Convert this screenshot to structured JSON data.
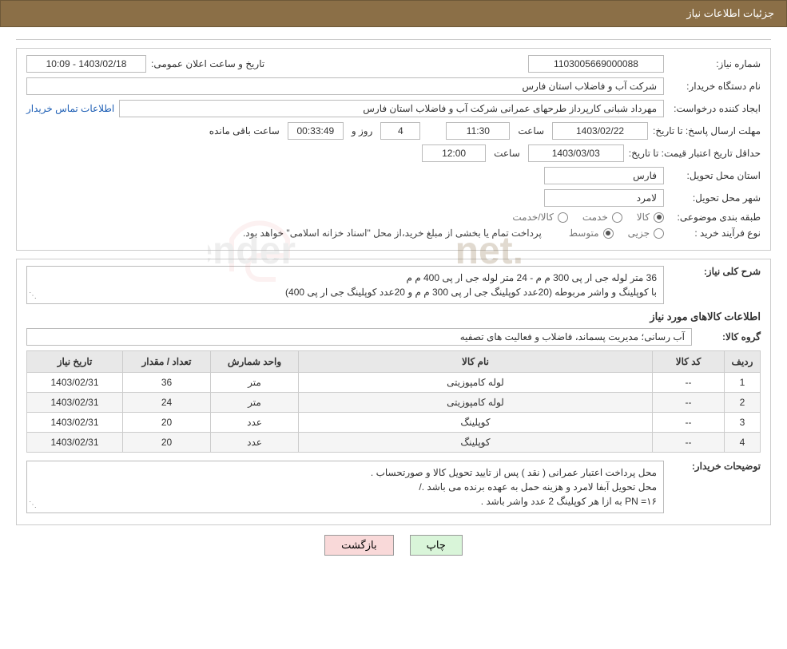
{
  "header": {
    "title": "جزئیات اطلاعات نیاز"
  },
  "info": {
    "need_no_label": "شماره نیاز:",
    "need_no": "1103005669000088",
    "announce_label": "تاریخ و ساعت اعلان عمومی:",
    "announce_value": "1403/02/18 - 10:09",
    "buyer_org_label": "نام دستگاه خریدار:",
    "buyer_org": "شرکت آب و فاضلاب استان فارس",
    "requester_label": "ایجاد کننده درخواست:",
    "requester": "مهرداد شبانی کارپرداز طرحهای عمرانی  شرکت آب و فاضلاب استان فارس",
    "contact_link": "اطلاعات تماس خریدار",
    "reply_deadline_label": "مهلت ارسال پاسخ:",
    "until_date_label": "تا تاریخ:",
    "reply_date": "1403/02/22",
    "time_label": "ساعت",
    "reply_time": "11:30",
    "days_label": "روز و",
    "days_remaining": "4",
    "countdown": "00:33:49",
    "remaining_label": "ساعت باقی مانده",
    "price_valid_label": "حداقل تاریخ اعتبار قیمت:",
    "price_valid_date": "1403/03/03",
    "price_valid_time": "12:00",
    "delivery_province_label": "استان محل تحویل:",
    "delivery_province": "فارس",
    "delivery_city_label": "شهر محل تحویل:",
    "delivery_city": "لامرد",
    "category_label": "طبقه بندی موضوعی:",
    "cat_goods": "کالا",
    "cat_service": "خدمت",
    "cat_goods_service": "کالا/خدمت",
    "purchase_type_label": "نوع فرآیند خرید :",
    "pt_partial": "جزیی",
    "pt_medium": "متوسط",
    "purchase_note": "پرداخت تمام یا بخشی از مبلغ خرید،از محل \"اسناد خزانه اسلامی\" خواهد بود."
  },
  "desc": {
    "label": "شرح کلی نیاز:",
    "line1": "36 متر لوله جی ار پی 300 م م - 24 متر لوله جی ار پی 400 م م",
    "line2": "با کوپلینگ و واشر مربوطه (20عدد کوپلینگ جی ار پی 300 م م و 20عدد کوپلینگ جی ار پی 400)"
  },
  "items_section": {
    "title": "اطلاعات کالاهای مورد نیاز",
    "group_label": "گروه کالا:",
    "group_value": "آب رسانی؛ مدیریت پسماند، فاضلاب و فعالیت های تصفیه"
  },
  "table": {
    "headers": {
      "row": "ردیف",
      "code": "کد کالا",
      "name": "نام کالا",
      "unit": "واحد شمارش",
      "qty": "تعداد / مقدار",
      "date": "تاریخ نیاز"
    },
    "rows": [
      {
        "n": "1",
        "code": "--",
        "name": "لوله کامپوزیتی",
        "unit": "متر",
        "qty": "36",
        "date": "1403/02/31"
      },
      {
        "n": "2",
        "code": "--",
        "name": "لوله کامپوزیتی",
        "unit": "متر",
        "qty": "24",
        "date": "1403/02/31"
      },
      {
        "n": "3",
        "code": "--",
        "name": "کوپلینگ",
        "unit": "عدد",
        "qty": "20",
        "date": "1403/02/31"
      },
      {
        "n": "4",
        "code": "--",
        "name": "کوپلینگ",
        "unit": "عدد",
        "qty": "20",
        "date": "1403/02/31"
      }
    ]
  },
  "buyer_notes": {
    "label": "توضیحات خریدار:",
    "line1": "محل پرداخت اعتبار عمرانی ( نقد ) پس از تایید تحویل کالا و صورتحساب .",
    "line2": "محل تحویل آبفا لامرد و هزینه حمل به عهده برنده می باشد ./",
    "line3": "PN =۱۶    به ازا هر کوپلینگ 2 عدد واشر باشد ."
  },
  "buttons": {
    "print": "چاپ",
    "back": "بازگشت"
  },
  "watermark": {
    "text": "AriaTender.net"
  },
  "colors": {
    "header_bg": "#8b6f47",
    "border": "#cccccc",
    "field_border": "#bbbbbb",
    "link": "#1e5fb5",
    "th_bg": "#e8e8e8"
  }
}
